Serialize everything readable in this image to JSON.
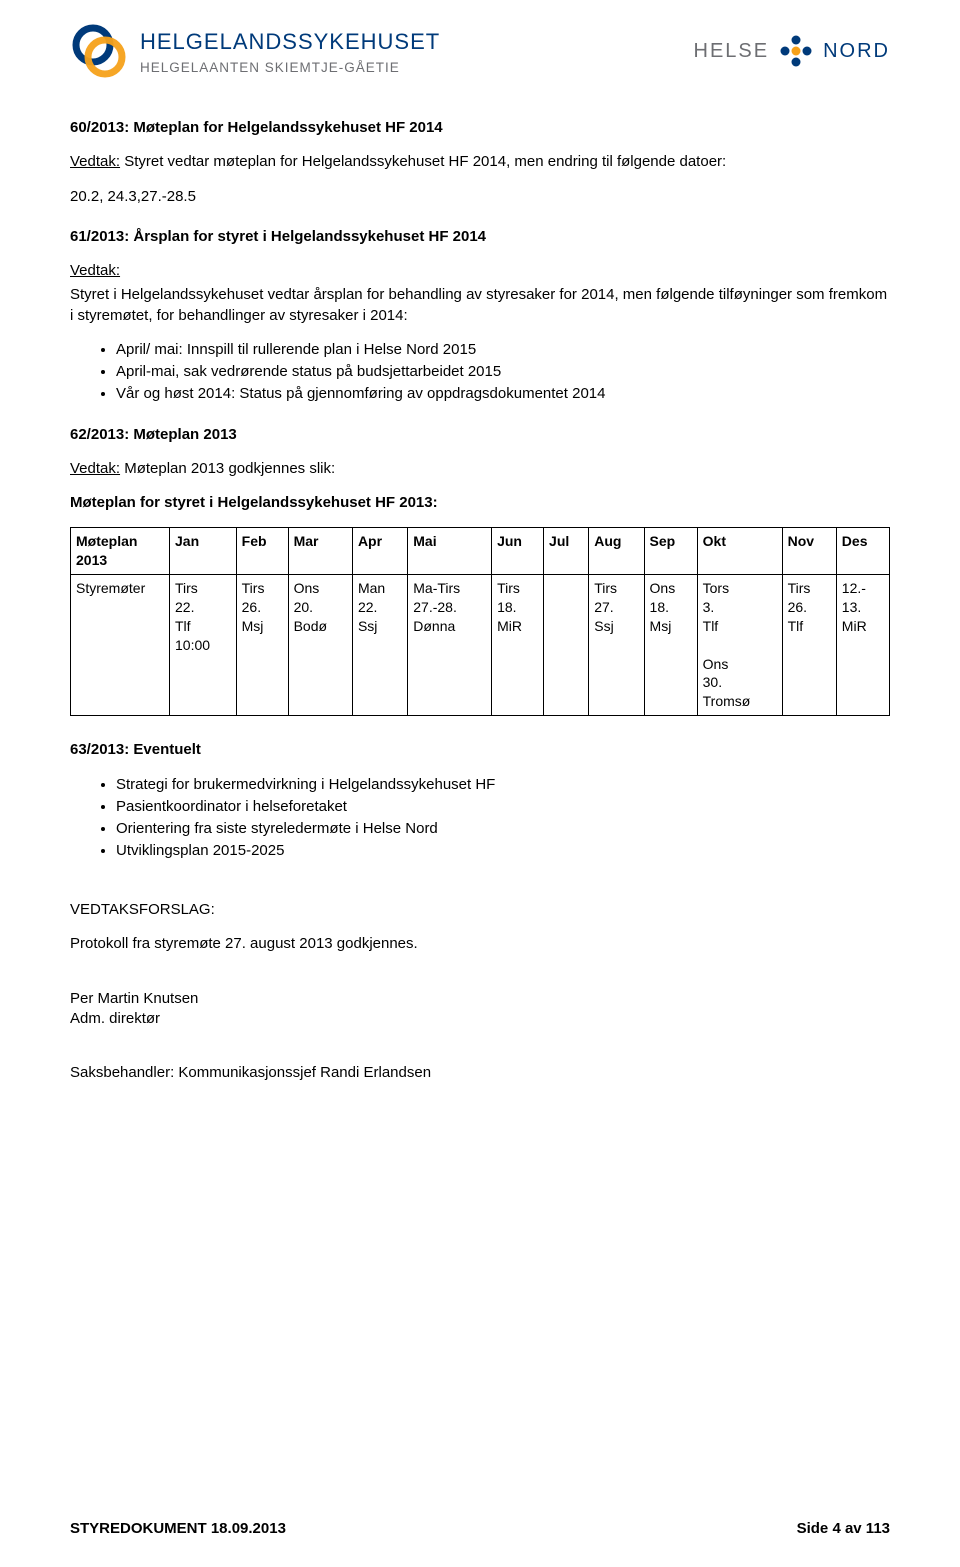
{
  "header": {
    "left_title": "HELGELANDSSYKEHUSET",
    "left_sub": "HELGELAANTEN SKIEMTJE-GÅETIE",
    "right_1": "HELSE",
    "right_2": "NORD",
    "colors": {
      "blue": "#003a7a",
      "grey": "#6d6e72",
      "orange": "#f6a11a"
    }
  },
  "s60": {
    "title": "60/2013: Møteplan for Helgelandssykehuset HF 2014",
    "line1": "Vedtak:",
    "line1_rest": " Styret vedtar møteplan for Helgelandssykehuset HF 2014, men endring til følgende datoer:",
    "line2": "20.2, 24.3,27.-28.5"
  },
  "s61": {
    "title": "61/2013: Årsplan for styret i Helgelandssykehuset HF 2014",
    "vedtak_label": "Vedtak:",
    "vedtak_text": "Styret i Helgelandssykehuset vedtar årsplan for behandling av styresaker for 2014, men følgende tilføyninger som fremkom i styremøtet, for behandlinger av styresaker i 2014:",
    "bullets": [
      "April/ mai: Innspill til rullerende plan i Helse Nord 2015",
      "April-mai, sak vedrørende status på budsjettarbeidet 2015",
      "Vår og høst 2014: Status på gjennomføring av oppdragsdokumentet 2014"
    ]
  },
  "s62": {
    "title": "62/2013: Møteplan 2013",
    "line1_lead": "Vedtak:",
    "line1_rest": " Møteplan 2013 godkjennes slik:",
    "subtitle": "Møteplan for styret i Helgelandssykehuset HF 2013:"
  },
  "plan_table": {
    "row_label_1": "Møteplan 2013",
    "row_label_2": "Styremøter",
    "headers": [
      "Jan",
      "Feb",
      "Mar",
      "Apr",
      "Mai",
      "Jun",
      "Jul",
      "Aug",
      "Sep",
      "Okt",
      "Nov",
      "Des"
    ],
    "cells": [
      [
        "Tirs",
        "22.",
        "Tlf",
        "10:00"
      ],
      [
        "Tirs",
        "26.",
        "Msj"
      ],
      [
        "Ons",
        "20.",
        "Bodø"
      ],
      [
        "Man",
        "22.",
        "Ssj"
      ],
      [
        "Ma-Tirs",
        "27.-28.",
        "Dønna"
      ],
      [
        "Tirs",
        "18.",
        "MiR"
      ],
      [],
      [
        "Tirs",
        "27.",
        "Ssj"
      ],
      [
        "Ons",
        "18.",
        "Msj"
      ],
      [
        "Tors",
        "3.",
        "Tlf",
        "",
        "Ons",
        "30.",
        "Tromsø"
      ],
      [
        "Tirs",
        "26.",
        "Tlf"
      ],
      [
        "12.-",
        "13.",
        "MiR"
      ]
    ]
  },
  "s63": {
    "title": "63/2013: Eventuelt",
    "bullets": [
      "Strategi for brukermedvirkning i Helgelandssykehuset HF",
      "Pasientkoordinator i helseforetaket",
      "Orientering fra siste styreledermøte i Helse Nord",
      "Utviklingsplan 2015-2025"
    ]
  },
  "vedtaksforslag": {
    "label": "VEDTAKSFORSLAG:",
    "text": "Protokoll fra styremøte 27. august 2013 godkjennes."
  },
  "sign": {
    "name": "Per Martin Knutsen",
    "role": "Adm. direktør"
  },
  "saksbeh": "Saksbehandler: Kommunikasjonssjef Randi Erlandsen",
  "footer": {
    "left": "STYREDOKUMENT 18.09.2013",
    "right": "Side 4 av 113"
  }
}
